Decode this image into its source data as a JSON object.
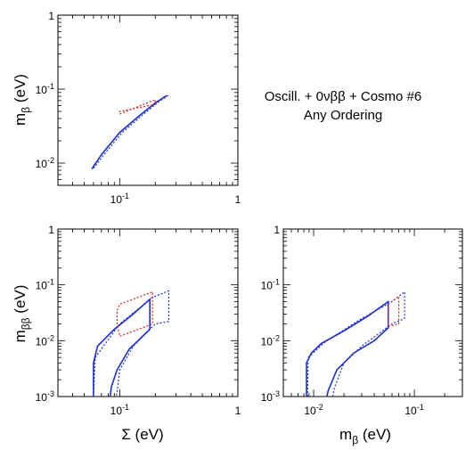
{
  "annotation": {
    "line1": "Oscill. + 0νββ + Cosmo #6",
    "line2": "Any Ordering"
  },
  "colors": {
    "blue": "#1a2fd6",
    "red": "#e02020"
  },
  "chart_data": [
    {
      "id": "top-left",
      "type": "line",
      "scale": "log-log",
      "xlim": [
        0.03,
        1
      ],
      "ylim": [
        0.005,
        1
      ],
      "xticklabels": [
        "10^-1",
        "1"
      ],
      "yticklabels": [
        "10^-2",
        "10^-1",
        "1"
      ],
      "xlabel": "",
      "ylabel": "m_β (eV)",
      "series": [
        {
          "color": "blue",
          "style": "solid",
          "values": [
            [
              0.058,
              0.0083
            ],
            [
              0.07,
              0.013
            ],
            [
              0.1,
              0.026
            ],
            [
              0.15,
              0.045
            ],
            [
              0.2,
              0.065
            ],
            [
              0.25,
              0.082
            ]
          ]
        },
        {
          "color": "blue",
          "style": "dotted",
          "values": [
            [
              0.06,
              0.0085
            ],
            [
              0.075,
              0.0135
            ],
            [
              0.105,
              0.026
            ],
            [
              0.16,
              0.046
            ],
            [
              0.21,
              0.066
            ],
            [
              0.26,
              0.083
            ]
          ]
        },
        {
          "color": "red",
          "style": "dotted",
          "values": [
            [
              0.1,
              0.046
            ],
            [
              0.2,
              0.072
            ],
            [
              0.2,
              0.062
            ],
            [
              0.1,
              0.05
            ],
            [
              0.1,
              0.046
            ]
          ]
        }
      ]
    },
    {
      "id": "bottom-left",
      "type": "line",
      "scale": "log-log",
      "xlim": [
        0.03,
        1
      ],
      "ylim": [
        0.001,
        1
      ],
      "xticklabels": [
        "10^-1",
        "1"
      ],
      "yticklabels": [
        "10^-3",
        "10^-2",
        "10^-1",
        "1"
      ],
      "xlabel": "Σ (eV)",
      "ylabel": "m_ββ (eV)",
      "series": [
        {
          "color": "blue",
          "style": "solid",
          "values": [
            [
              0.06,
              0.001
            ],
            [
              0.06,
              0.004
            ],
            [
              0.065,
              0.008
            ],
            [
              0.09,
              0.016
            ],
            [
              0.13,
              0.03
            ],
            [
              0.18,
              0.055
            ],
            [
              0.18,
              0.016
            ],
            [
              0.12,
              0.007
            ],
            [
              0.095,
              0.003
            ],
            [
              0.085,
              0.0015
            ],
            [
              0.083,
              0.001
            ]
          ]
        },
        {
          "color": "blue",
          "style": "dotted",
          "values": [
            [
              0.06,
              0.001
            ],
            [
              0.062,
              0.005
            ],
            [
              0.1,
              0.02
            ],
            [
              0.19,
              0.06
            ],
            [
              0.26,
              0.078
            ],
            [
              0.26,
              0.022
            ],
            [
              0.2,
              0.02
            ],
            [
              0.13,
              0.008
            ],
            [
              0.1,
              0.003
            ],
            [
              0.095,
              0.0012
            ],
            [
              0.093,
              0.001
            ]
          ]
        },
        {
          "color": "red",
          "style": "dotted",
          "values": [
            [
              0.095,
              0.035
            ],
            [
              0.1,
              0.045
            ],
            [
              0.19,
              0.075
            ],
            [
              0.19,
              0.02
            ],
            [
              0.1,
              0.012
            ],
            [
              0.095,
              0.02
            ],
            [
              0.095,
              0.035
            ]
          ]
        }
      ]
    },
    {
      "id": "bottom-right",
      "type": "line",
      "scale": "log-log",
      "xlim": [
        0.005,
        0.3
      ],
      "ylim": [
        0.001,
        1
      ],
      "xticklabels": [
        "10^-2",
        "10^-1"
      ],
      "yticklabels": [
        "10^-3",
        "10^-2",
        "10^-1",
        "1"
      ],
      "xlabel": "m_β (eV)",
      "ylabel": "",
      "series": [
        {
          "color": "blue",
          "style": "solid",
          "values": [
            [
              0.0085,
              0.001
            ],
            [
              0.0085,
              0.004
            ],
            [
              0.0095,
              0.006
            ],
            [
              0.012,
              0.009
            ],
            [
              0.02,
              0.015
            ],
            [
              0.035,
              0.028
            ],
            [
              0.055,
              0.05
            ],
            [
              0.055,
              0.017
            ],
            [
              0.04,
              0.01
            ],
            [
              0.025,
              0.006
            ],
            [
              0.017,
              0.003
            ],
            [
              0.014,
              0.0013
            ],
            [
              0.0135,
              0.001
            ]
          ]
        },
        {
          "color": "blue",
          "style": "dotted",
          "values": [
            [
              0.0087,
              0.001
            ],
            [
              0.0088,
              0.005
            ],
            [
              0.013,
              0.0095
            ],
            [
              0.03,
              0.025
            ],
            [
              0.06,
              0.05
            ],
            [
              0.08,
              0.075
            ],
            [
              0.08,
              0.025
            ],
            [
              0.06,
              0.02
            ],
            [
              0.03,
              0.008
            ],
            [
              0.02,
              0.004
            ],
            [
              0.016,
              0.0014
            ],
            [
              0.0155,
              0.001
            ]
          ]
        },
        {
          "color": "red",
          "style": "dotted",
          "values": [
            [
              0.055,
              0.033
            ],
            [
              0.055,
              0.045
            ],
            [
              0.07,
              0.062
            ],
            [
              0.07,
              0.02
            ],
            [
              0.055,
              0.018
            ],
            [
              0.055,
              0.033
            ]
          ]
        }
      ]
    }
  ]
}
